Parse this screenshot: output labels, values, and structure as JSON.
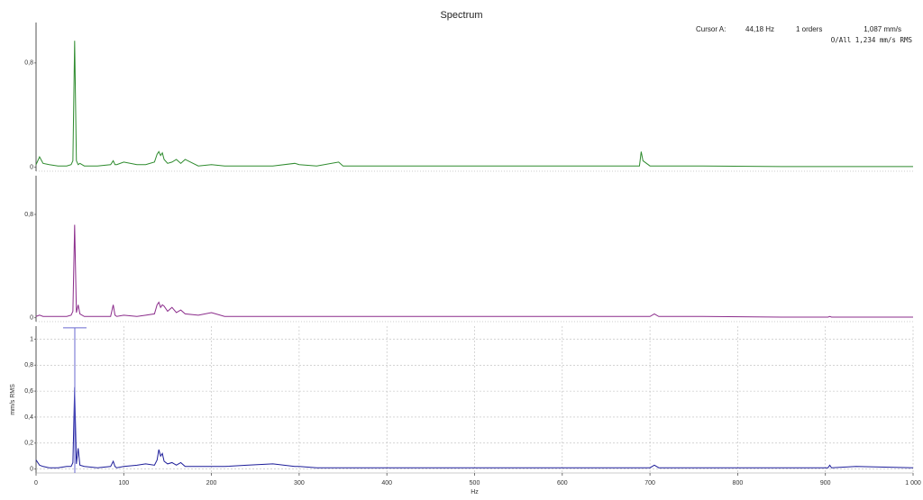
{
  "title": "Spectrum",
  "cursor": {
    "label": "Cursor A:",
    "frequency": 44.18,
    "frequency_label": "44,18 Hz",
    "orders_label": "1 orders",
    "amplitude": 1.087,
    "amplitude_label": "1,087 mm/s",
    "overall_label": "O/All 1,234 mm/s RMS"
  },
  "chart_data": [
    {
      "type": "line",
      "xlim": [
        0,
        1000
      ],
      "ylim": [
        -0.03,
        1.11
      ],
      "yticks": [
        0,
        {
          "value": 0.8,
          "label": "0,8"
        }
      ],
      "x": [
        0,
        4,
        8,
        15,
        25,
        35,
        40,
        42,
        44,
        46,
        48,
        50,
        55,
        70,
        85,
        88,
        90,
        92,
        100,
        115,
        125,
        135,
        138,
        140,
        142,
        144,
        146,
        150,
        155,
        160,
        165,
        170,
        185,
        200,
        215,
        240,
        270,
        295,
        300,
        320,
        345,
        350,
        380,
        420,
        480,
        560,
        600,
        640,
        688,
        690,
        692,
        700,
        705,
        710,
        760,
        850,
        903,
        905,
        907,
        935,
        1000
      ],
      "series": [
        {
          "color": "#2e8b2e",
          "values": [
            0.02,
            0.08,
            0.03,
            0.02,
            0.01,
            0.01,
            0.02,
            0.05,
            0.97,
            0.05,
            0.02,
            0.03,
            0.01,
            0.01,
            0.02,
            0.05,
            0.02,
            0.02,
            0.04,
            0.02,
            0.02,
            0.04,
            0.1,
            0.12,
            0.09,
            0.11,
            0.06,
            0.03,
            0.04,
            0.06,
            0.03,
            0.06,
            0.01,
            0.02,
            0.01,
            0.01,
            0.01,
            0.03,
            0.02,
            0.01,
            0.04,
            0.01,
            0.01,
            0.01,
            0.01,
            0.01,
            0.01,
            0.01,
            0.01,
            0.12,
            0.05,
            0.01,
            0.01,
            0.01,
            0.01,
            0.005,
            0.005,
            0.005,
            0.005,
            0.005,
            0.005
          ]
        }
      ]
    },
    {
      "type": "line",
      "xlim": [
        0,
        1000
      ],
      "ylim": [
        -0.03,
        1.1
      ],
      "yticks": [
        0,
        {
          "value": 0.8,
          "label": "0,8"
        }
      ],
      "x": [
        0,
        4,
        8,
        15,
        25,
        35,
        40,
        42,
        44,
        46,
        48,
        50,
        55,
        70,
        85,
        88,
        90,
        92,
        100,
        115,
        125,
        135,
        138,
        140,
        142,
        144,
        146,
        150,
        155,
        160,
        165,
        170,
        185,
        200,
        215,
        240,
        270,
        295,
        300,
        320,
        345,
        350,
        380,
        420,
        480,
        560,
        600,
        640,
        688,
        690,
        692,
        700,
        705,
        710,
        760,
        850,
        903,
        905,
        907,
        935,
        1000
      ],
      "series": [
        {
          "color": "#8b2c8b",
          "values": [
            0.01,
            0.02,
            0.01,
            0.01,
            0.01,
            0.01,
            0.02,
            0.05,
            0.72,
            0.04,
            0.1,
            0.03,
            0.01,
            0.01,
            0.01,
            0.1,
            0.02,
            0.01,
            0.02,
            0.01,
            0.02,
            0.03,
            0.1,
            0.12,
            0.08,
            0.1,
            0.09,
            0.05,
            0.08,
            0.04,
            0.06,
            0.03,
            0.02,
            0.04,
            0.01,
            0.01,
            0.01,
            0.01,
            0.01,
            0.01,
            0.01,
            0.01,
            0.01,
            0.01,
            0.01,
            0.01,
            0.01,
            0.01,
            0.01,
            0.01,
            0.01,
            0.01,
            0.03,
            0.01,
            0.01,
            0.005,
            0.005,
            0.01,
            0.005,
            0.005,
            0.005
          ]
        }
      ]
    },
    {
      "type": "line",
      "xlim": [
        0,
        1000
      ],
      "ylim": [
        -0.03,
        1.1
      ],
      "xlabel": "Hz",
      "ylabel": "mm/s RMS",
      "grid": true,
      "yticks": [
        0,
        {
          "value": 0.2,
          "label": "0,2"
        },
        {
          "value": 0.4,
          "label": "0,4"
        },
        {
          "value": 0.6,
          "label": "0,6"
        },
        {
          "value": 0.8,
          "label": "0,8"
        },
        1
      ],
      "xticks": [
        0,
        100,
        200,
        300,
        400,
        500,
        600,
        700,
        800,
        900,
        {
          "value": 1000,
          "label": "1 000"
        }
      ],
      "x": [
        0,
        4,
        8,
        15,
        25,
        35,
        40,
        42,
        44,
        46,
        48,
        50,
        55,
        70,
        85,
        88,
        90,
        92,
        100,
        115,
        125,
        135,
        138,
        140,
        142,
        144,
        146,
        150,
        155,
        160,
        165,
        170,
        185,
        200,
        215,
        240,
        270,
        295,
        300,
        320,
        345,
        350,
        380,
        420,
        480,
        560,
        600,
        640,
        688,
        690,
        692,
        700,
        705,
        710,
        760,
        850,
        903,
        905,
        907,
        935,
        1000
      ],
      "series": [
        {
          "color": "#1c1c99",
          "values": [
            0.07,
            0.03,
            0.02,
            0.01,
            0.01,
            0.02,
            0.02,
            0.05,
            0.63,
            0.04,
            0.16,
            0.03,
            0.02,
            0.01,
            0.02,
            0.06,
            0.02,
            0.01,
            0.02,
            0.03,
            0.04,
            0.03,
            0.07,
            0.15,
            0.1,
            0.12,
            0.06,
            0.04,
            0.05,
            0.03,
            0.05,
            0.02,
            0.02,
            0.02,
            0.02,
            0.03,
            0.04,
            0.02,
            0.02,
            0.01,
            0.01,
            0.01,
            0.01,
            0.01,
            0.01,
            0.01,
            0.01,
            0.01,
            0.01,
            0.01,
            0.01,
            0.01,
            0.03,
            0.01,
            0.01,
            0.01,
            0.01,
            0.03,
            0.01,
            0.02,
            0.01
          ]
        }
      ]
    }
  ]
}
